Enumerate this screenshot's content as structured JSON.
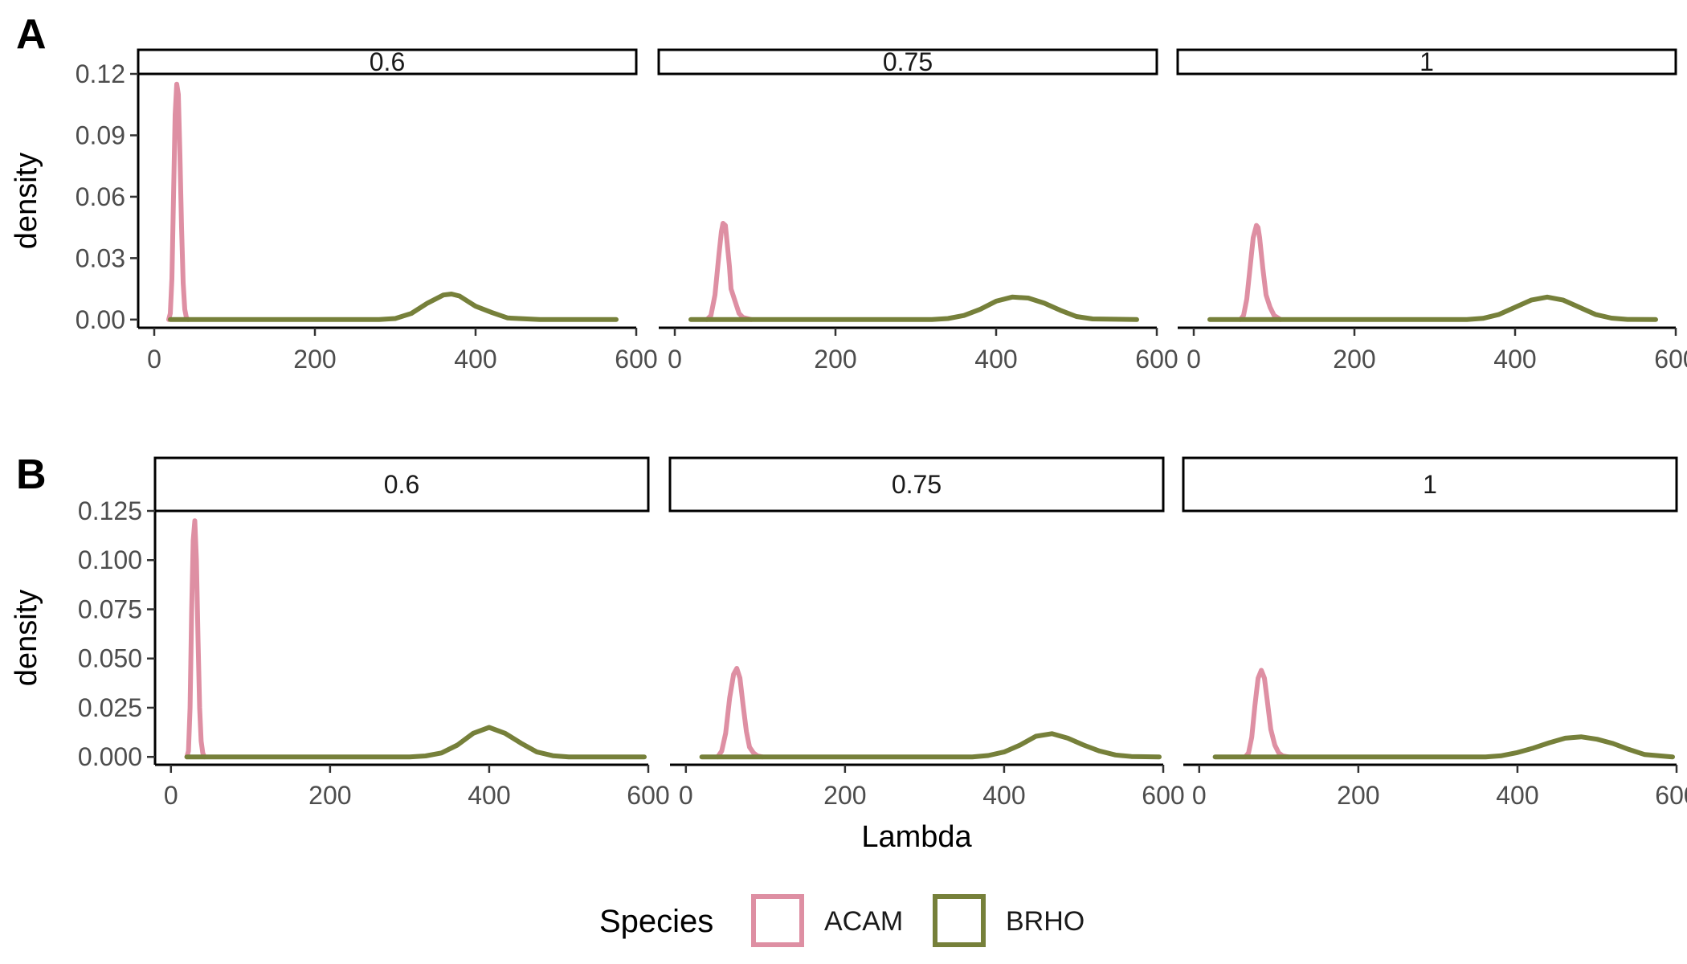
{
  "colors": {
    "ACAM": "#de8fa3",
    "BRHO": "#76803a",
    "axis": "#000000",
    "tick_text": "#4d4d4d"
  },
  "chart_data": [
    {
      "type": "line",
      "panel_tag": "A",
      "ylabel": "density",
      "xlabel": "",
      "xlim": [
        -20,
        600
      ],
      "ylim": [
        -0.004,
        0.12
      ],
      "x_ticks": [
        0,
        200,
        400,
        600
      ],
      "y_ticks": [
        0,
        0.03,
        0.06,
        0.09,
        0.12
      ],
      "y_tick_labels": [
        "0.00",
        "0.03",
        "0.06",
        "0.09",
        "0.12"
      ],
      "facets": [
        {
          "label": "0.6",
          "series": [
            {
              "name": "ACAM",
              "x": [
                18,
                20,
                22,
                24,
                26,
                28,
                30,
                32,
                34,
                36,
                38,
                40,
                42
              ],
              "y": [
                0,
                0.003,
                0.02,
                0.06,
                0.1,
                0.115,
                0.11,
                0.08,
                0.045,
                0.018,
                0.005,
                0.001,
                0
              ]
            },
            {
              "name": "BRHO",
              "x": [
                20,
                280,
                300,
                320,
                340,
                360,
                370,
                380,
                390,
                400,
                420,
                440,
                480,
                520,
                575
              ],
              "y": [
                0,
                0,
                0.0005,
                0.003,
                0.008,
                0.012,
                0.0125,
                0.0115,
                0.009,
                0.0065,
                0.0035,
                0.0008,
                0,
                0,
                0
              ]
            }
          ]
        },
        {
          "label": "0.75",
          "series": [
            {
              "name": "ACAM",
              "x": [
                40,
                45,
                50,
                55,
                58,
                60,
                63,
                65,
                68,
                70,
                75,
                80,
                85,
                95
              ],
              "y": [
                0,
                0.002,
                0.012,
                0.032,
                0.043,
                0.047,
                0.046,
                0.038,
                0.026,
                0.015,
                0.009,
                0.003,
                0.001,
                0
              ]
            },
            {
              "name": "BRHO",
              "x": [
                20,
                320,
                340,
                360,
                380,
                400,
                420,
                440,
                460,
                480,
                500,
                520,
                575
              ],
              "y": [
                0,
                0,
                0.0005,
                0.002,
                0.005,
                0.009,
                0.011,
                0.0105,
                0.008,
                0.0045,
                0.0015,
                0.0003,
                0
              ]
            }
          ]
        },
        {
          "label": "1",
          "series": [
            {
              "name": "ACAM",
              "x": [
                58,
                62,
                66,
                70,
                74,
                78,
                80,
                82,
                86,
                90,
                95,
                100,
                108
              ],
              "y": [
                0,
                0.002,
                0.01,
                0.025,
                0.04,
                0.046,
                0.045,
                0.04,
                0.025,
                0.012,
                0.006,
                0.002,
                0
              ]
            },
            {
              "name": "BRHO",
              "x": [
                20,
                340,
                360,
                380,
                400,
                420,
                440,
                460,
                480,
                500,
                520,
                540,
                575
              ],
              "y": [
                0,
                0,
                0.0006,
                0.0025,
                0.006,
                0.0095,
                0.011,
                0.0095,
                0.006,
                0.0025,
                0.0007,
                0.0001,
                0
              ]
            }
          ]
        }
      ]
    },
    {
      "type": "line",
      "panel_tag": "B",
      "ylabel": "density",
      "xlabel": "Lambda",
      "xlim": [
        -20,
        600
      ],
      "ylim": [
        -0.004,
        0.125
      ],
      "x_ticks": [
        0,
        200,
        400,
        600
      ],
      "y_ticks": [
        0,
        0.025,
        0.05,
        0.075,
        0.1,
        0.125
      ],
      "y_tick_labels": [
        "0.000",
        "0.025",
        "0.050",
        "0.075",
        "0.100",
        "0.125"
      ],
      "facets": [
        {
          "label": "0.6",
          "series": [
            {
              "name": "ACAM",
              "x": [
                20,
                22,
                24,
                26,
                28,
                30,
                32,
                34,
                36,
                38,
                40,
                42
              ],
              "y": [
                0,
                0.003,
                0.025,
                0.075,
                0.11,
                0.12,
                0.1,
                0.06,
                0.025,
                0.008,
                0.002,
                0
              ]
            },
            {
              "name": "BRHO",
              "x": [
                20,
                300,
                320,
                340,
                360,
                380,
                400,
                420,
                440,
                460,
                480,
                500,
                595
              ],
              "y": [
                0,
                0,
                0.0005,
                0.002,
                0.006,
                0.012,
                0.015,
                0.012,
                0.007,
                0.0025,
                0.0006,
                0,
                0
              ]
            }
          ]
        },
        {
          "label": "0.75",
          "series": [
            {
              "name": "ACAM",
              "x": [
                40,
                45,
                50,
                55,
                60,
                64,
                68,
                72,
                76,
                80,
                85,
                90,
                96
              ],
              "y": [
                0,
                0.003,
                0.012,
                0.03,
                0.042,
                0.045,
                0.04,
                0.026,
                0.013,
                0.005,
                0.002,
                0.0005,
                0
              ]
            },
            {
              "name": "BRHO",
              "x": [
                20,
                360,
                380,
                400,
                420,
                440,
                460,
                480,
                500,
                520,
                540,
                560,
                595
              ],
              "y": [
                0,
                0,
                0.0007,
                0.0025,
                0.006,
                0.0105,
                0.0118,
                0.0095,
                0.006,
                0.003,
                0.001,
                0.0002,
                0
              ]
            }
          ]
        },
        {
          "label": "1",
          "series": [
            {
              "name": "ACAM",
              "x": [
                58,
                62,
                66,
                70,
                74,
                78,
                82,
                86,
                90,
                95,
                100,
                105,
                112
              ],
              "y": [
                0,
                0.002,
                0.01,
                0.026,
                0.04,
                0.044,
                0.04,
                0.027,
                0.014,
                0.006,
                0.002,
                0.0005,
                0
              ]
            },
            {
              "name": "BRHO",
              "x": [
                20,
                360,
                380,
                400,
                420,
                440,
                460,
                480,
                500,
                520,
                540,
                560,
                595
              ],
              "y": [
                0,
                0,
                0.0006,
                0.0022,
                0.0045,
                0.0072,
                0.0095,
                0.0102,
                0.009,
                0.0068,
                0.0038,
                0.0012,
                0
              ]
            }
          ]
        }
      ]
    }
  ],
  "legend": {
    "title": "Species",
    "entries": [
      {
        "name": "ACAM",
        "color": "#de8fa3"
      },
      {
        "name": "BRHO",
        "color": "#76803a"
      }
    ]
  }
}
